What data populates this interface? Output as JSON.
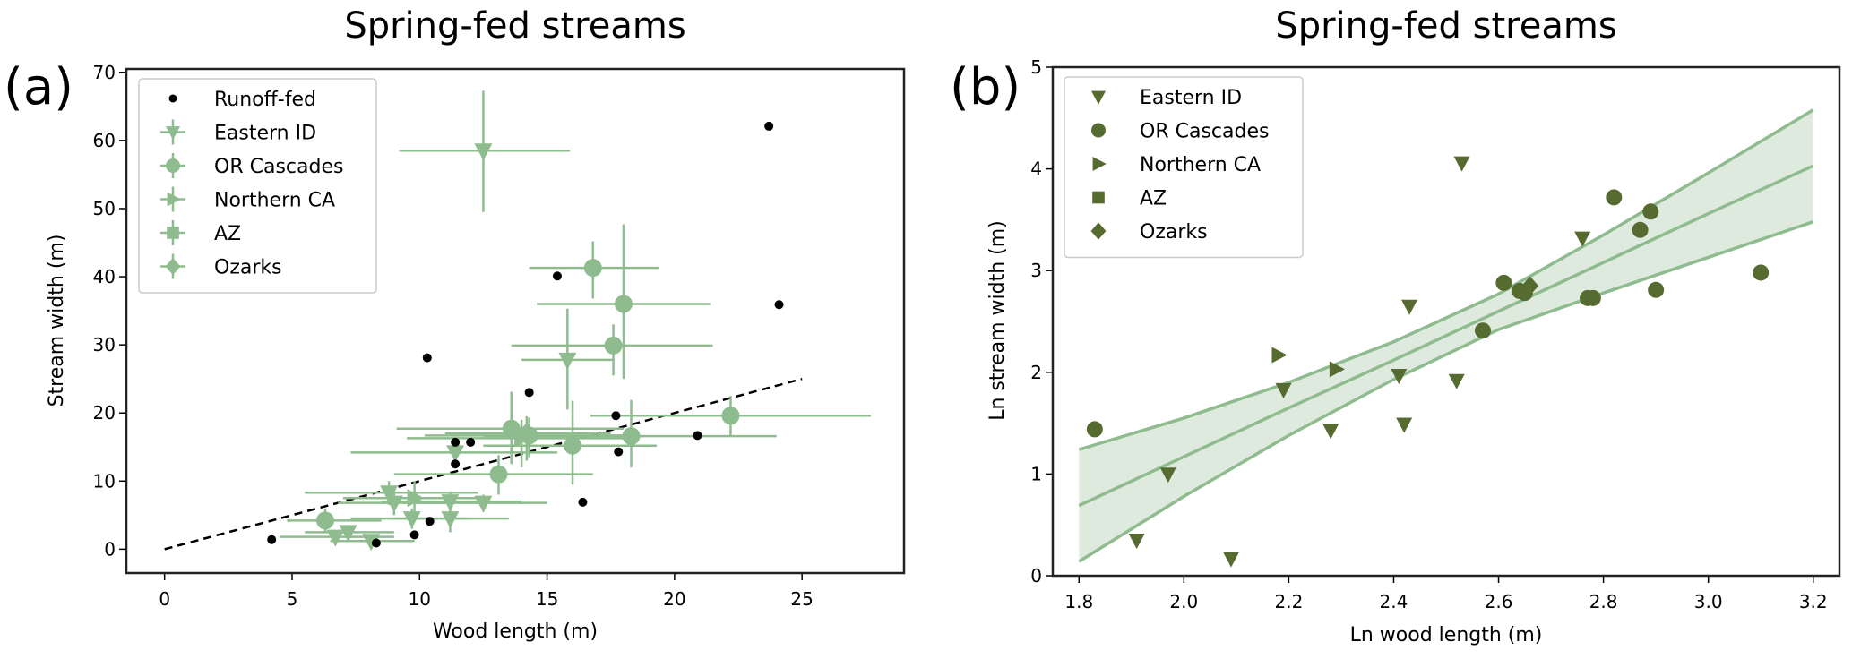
{
  "colors": {
    "light_green": "#8fbc8f",
    "dark_green": "#556b2f",
    "band_fill": "#dfeadf",
    "runoff": "#000000",
    "fit_line": "#000000"
  },
  "chart_data": [
    {
      "id": "a",
      "type": "scatter",
      "panel_label": "(a)",
      "title": "Spring-fed streams",
      "xlabel": "Wood length (m)",
      "ylabel": "Stream width (m)",
      "xlim": [
        -1.5,
        29
      ],
      "ylim": [
        -3.5,
        70.5
      ],
      "xticks": [
        0,
        5,
        10,
        15,
        20,
        25
      ],
      "xtick_labels": [
        "0",
        "5",
        "10",
        "15",
        "20",
        "25"
      ],
      "yticks": [
        0,
        10,
        20,
        30,
        40,
        50,
        60,
        70
      ],
      "ytick_labels": [
        "0",
        "10",
        "20",
        "30",
        "40",
        "50",
        "60",
        "70"
      ],
      "legend_position": "upper-left",
      "legend": [
        {
          "label": "Runoff-fed",
          "marker": "dot"
        },
        {
          "label": "Eastern ID",
          "marker": "triangle-down"
        },
        {
          "label": "OR Cascades",
          "marker": "circle"
        },
        {
          "label": "Northern CA",
          "marker": "triangle-right"
        },
        {
          "label": "AZ",
          "marker": "square"
        },
        {
          "label": "Ozarks",
          "marker": "diamond"
        }
      ],
      "fit_line": {
        "style": "dashed",
        "x": [
          0,
          25
        ],
        "y": [
          0,
          25
        ]
      },
      "runoff_fed": [
        [
          4.2,
          1.4
        ],
        [
          8.3,
          0.9
        ],
        [
          9.8,
          2.1
        ],
        [
          10.4,
          4.1
        ],
        [
          10.3,
          28.1
        ],
        [
          11.4,
          15.7
        ],
        [
          11.4,
          12.5
        ],
        [
          12.0,
          15.7
        ],
        [
          14.3,
          23.0
        ],
        [
          15.4,
          40.1
        ],
        [
          16.4,
          6.9
        ],
        [
          17.7,
          19.6
        ],
        [
          17.8,
          14.3
        ],
        [
          20.9,
          16.7
        ],
        [
          23.7,
          62.1
        ],
        [
          24.1,
          35.9
        ]
      ],
      "series": [
        {
          "name": "Eastern ID",
          "marker": "triangle-down",
          "points": [
            {
              "x": 12.5,
              "y": 58.5,
              "xerr": [
                9.2,
                15.9
              ],
              "yerr": [
                49.5,
                67.3
              ]
            },
            {
              "x": 15.8,
              "y": 27.8,
              "xerr": [
                14.0,
                17.6
              ],
              "yerr": [
                20.5,
                35.3
              ]
            },
            {
              "x": 11.4,
              "y": 14.2,
              "xerr": [
                7.3,
                15.4
              ],
              "yerr": [
                12.0,
                16.5
              ]
            },
            {
              "x": 8.8,
              "y": 8.3,
              "xerr": [
                5.5,
                12.3
              ],
              "yerr": [
                6.5,
                10.0
              ]
            },
            {
              "x": 9.0,
              "y": 6.8,
              "xerr": [
                6.8,
                11.2
              ],
              "yerr": [
                5.0,
                8.5
              ]
            },
            {
              "x": 11.2,
              "y": 7.0,
              "xerr": [
                8.5,
                14.0
              ],
              "yerr": [
                5.5,
                8.5
              ]
            },
            {
              "x": 12.5,
              "y": 6.8,
              "xerr": [
                10.0,
                15.0
              ],
              "yerr": [
                5.5,
                8.0
              ]
            },
            {
              "x": 9.7,
              "y": 4.5,
              "xerr": [
                7.3,
                12.0
              ],
              "yerr": [
                3.0,
                6.0
              ]
            },
            {
              "x": 11.2,
              "y": 4.5,
              "xerr": [
                8.8,
                13.5
              ],
              "yerr": [
                2.5,
                6.5
              ]
            },
            {
              "x": 7.2,
              "y": 2.5,
              "xerr": [
                5.5,
                9.0
              ],
              "yerr": [
                1.5,
                3.5
              ]
            },
            {
              "x": 6.7,
              "y": 1.8,
              "xerr": [
                4.5,
                9.0
              ],
              "yerr": [
                1.0,
                2.5
              ]
            },
            {
              "x": 8.1,
              "y": 1.2,
              "xerr": [
                6.5,
                9.8
              ],
              "yerr": [
                0.5,
                2.0
              ]
            }
          ]
        },
        {
          "name": "OR Cascades",
          "marker": "circle",
          "points": [
            {
              "x": 16.8,
              "y": 41.3,
              "xerr": [
                14.3,
                19.4
              ],
              "yerr": [
                36.8,
                45.2
              ]
            },
            {
              "x": 18.0,
              "y": 36.0,
              "xerr": [
                14.6,
                21.4
              ],
              "yerr": [
                25.0,
                47.7
              ]
            },
            {
              "x": 17.6,
              "y": 29.9,
              "xerr": [
                13.6,
                21.5
              ],
              "yerr": [
                25.5,
                33.0
              ]
            },
            {
              "x": 22.2,
              "y": 19.6,
              "xerr": [
                16.7,
                27.7
              ],
              "yerr": [
                16.5,
                22.5
              ]
            },
            {
              "x": 13.6,
              "y": 17.7,
              "xerr": [
                9.1,
                18.0
              ],
              "yerr": [
                12.5,
                23.1
              ]
            },
            {
              "x": 14.3,
              "y": 16.7,
              "xerr": [
                10.2,
                18.5
              ],
              "yerr": [
                13.5,
                19.3
              ]
            },
            {
              "x": 16.0,
              "y": 15.2,
              "xerr": [
                12.5,
                19.3
              ],
              "yerr": [
                9.5,
                21.8
              ]
            },
            {
              "x": 18.3,
              "y": 16.6,
              "xerr": [
                12.5,
                24.0
              ],
              "yerr": [
                12.0,
                21.9
              ]
            },
            {
              "x": 13.1,
              "y": 11.0,
              "xerr": [
                9.0,
                16.8
              ],
              "yerr": [
                8.0,
                13.8
              ]
            },
            {
              "x": 6.3,
              "y": 4.2,
              "xerr": [
                4.8,
                8.5
              ],
              "yerr": [
                2.5,
                6.0
              ]
            }
          ]
        },
        {
          "name": "Northern CA",
          "marker": "triangle-right",
          "points": [
            {
              "x": 14.0,
              "y": 16.3,
              "xerr": [
                9.5,
                18.5
              ],
              "yerr": [
                12.0,
                19.0
              ]
            },
            {
              "x": 9.8,
              "y": 7.5,
              "xerr": [
                7.0,
                12.5
              ],
              "yerr": [
                5.5,
                10.0
              ]
            }
          ]
        },
        {
          "name": "Ozarks",
          "marker": "diamond",
          "points": [
            {
              "x": 14.2,
              "y": 17.0,
              "xerr": [
                11.0,
                17.5
              ],
              "yerr": [
                13.0,
                19.5
              ]
            }
          ]
        }
      ]
    },
    {
      "id": "b",
      "type": "scatter",
      "panel_label": "(b)",
      "title": "Spring-fed streams",
      "xlabel": "Ln wood length (m)",
      "ylabel": "Ln stream width (m)",
      "xlim": [
        1.75,
        3.25
      ],
      "ylim": [
        0,
        5
      ],
      "xticks": [
        1.8,
        2.0,
        2.2,
        2.4,
        2.6,
        2.8,
        3.0,
        3.2
      ],
      "xtick_labels": [
        "1.8",
        "2.0",
        "2.2",
        "2.4",
        "2.6",
        "2.8",
        "3.0",
        "3.2"
      ],
      "yticks": [
        0,
        1,
        2,
        3,
        4,
        5
      ],
      "ytick_labels": [
        "0",
        "1",
        "2",
        "3",
        "4",
        "5"
      ],
      "legend_position": "upper-left",
      "legend": [
        {
          "label": "Eastern ID",
          "marker": "triangle-down"
        },
        {
          "label": "OR Cascades",
          "marker": "circle"
        },
        {
          "label": "Northern CA",
          "marker": "triangle-right"
        },
        {
          "label": "AZ",
          "marker": "square"
        },
        {
          "label": "Ozarks",
          "marker": "diamond"
        }
      ],
      "regression": {
        "x": [
          1.8,
          2.0,
          2.2,
          2.4,
          2.6,
          2.8,
          3.0,
          3.2
        ],
        "mean": [
          0.69,
          1.17,
          1.65,
          2.12,
          2.6,
          3.08,
          3.56,
          4.03
        ],
        "upper": [
          1.24,
          1.55,
          1.9,
          2.3,
          2.77,
          3.35,
          3.96,
          4.58
        ],
        "lower": [
          0.14,
          0.78,
          1.38,
          1.93,
          2.42,
          2.78,
          3.13,
          3.48
        ]
      },
      "series": [
        {
          "name": "Eastern ID",
          "marker": "triangle-down",
          "points": [
            [
              2.53,
              4.06
            ],
            [
              2.76,
              3.32
            ],
            [
              2.43,
              2.65
            ],
            [
              2.19,
              1.83
            ],
            [
              2.41,
              1.97
            ],
            [
              2.52,
              1.92
            ],
            [
              2.28,
              1.43
            ],
            [
              2.42,
              1.49
            ],
            [
              1.97,
              1.0
            ],
            [
              1.91,
              0.35
            ],
            [
              2.09,
              0.17
            ]
          ]
        },
        {
          "name": "OR Cascades",
          "marker": "circle",
          "points": [
            [
              1.83,
              1.44
            ],
            [
              2.57,
              2.41
            ],
            [
              2.61,
              2.88
            ],
            [
              2.64,
              2.8
            ],
            [
              2.65,
              2.78
            ],
            [
              2.77,
              2.73
            ],
            [
              2.78,
              2.73
            ],
            [
              2.82,
              3.72
            ],
            [
              2.87,
              3.4
            ],
            [
              2.89,
              3.58
            ],
            [
              2.9,
              2.81
            ],
            [
              3.1,
              2.98
            ]
          ]
        },
        {
          "name": "Northern CA",
          "marker": "triangle-right",
          "points": [
            [
              2.18,
              2.17
            ],
            [
              2.29,
              2.03
            ]
          ]
        },
        {
          "name": "Ozarks",
          "marker": "diamond",
          "points": [
            [
              2.66,
              2.85
            ]
          ]
        }
      ]
    }
  ]
}
